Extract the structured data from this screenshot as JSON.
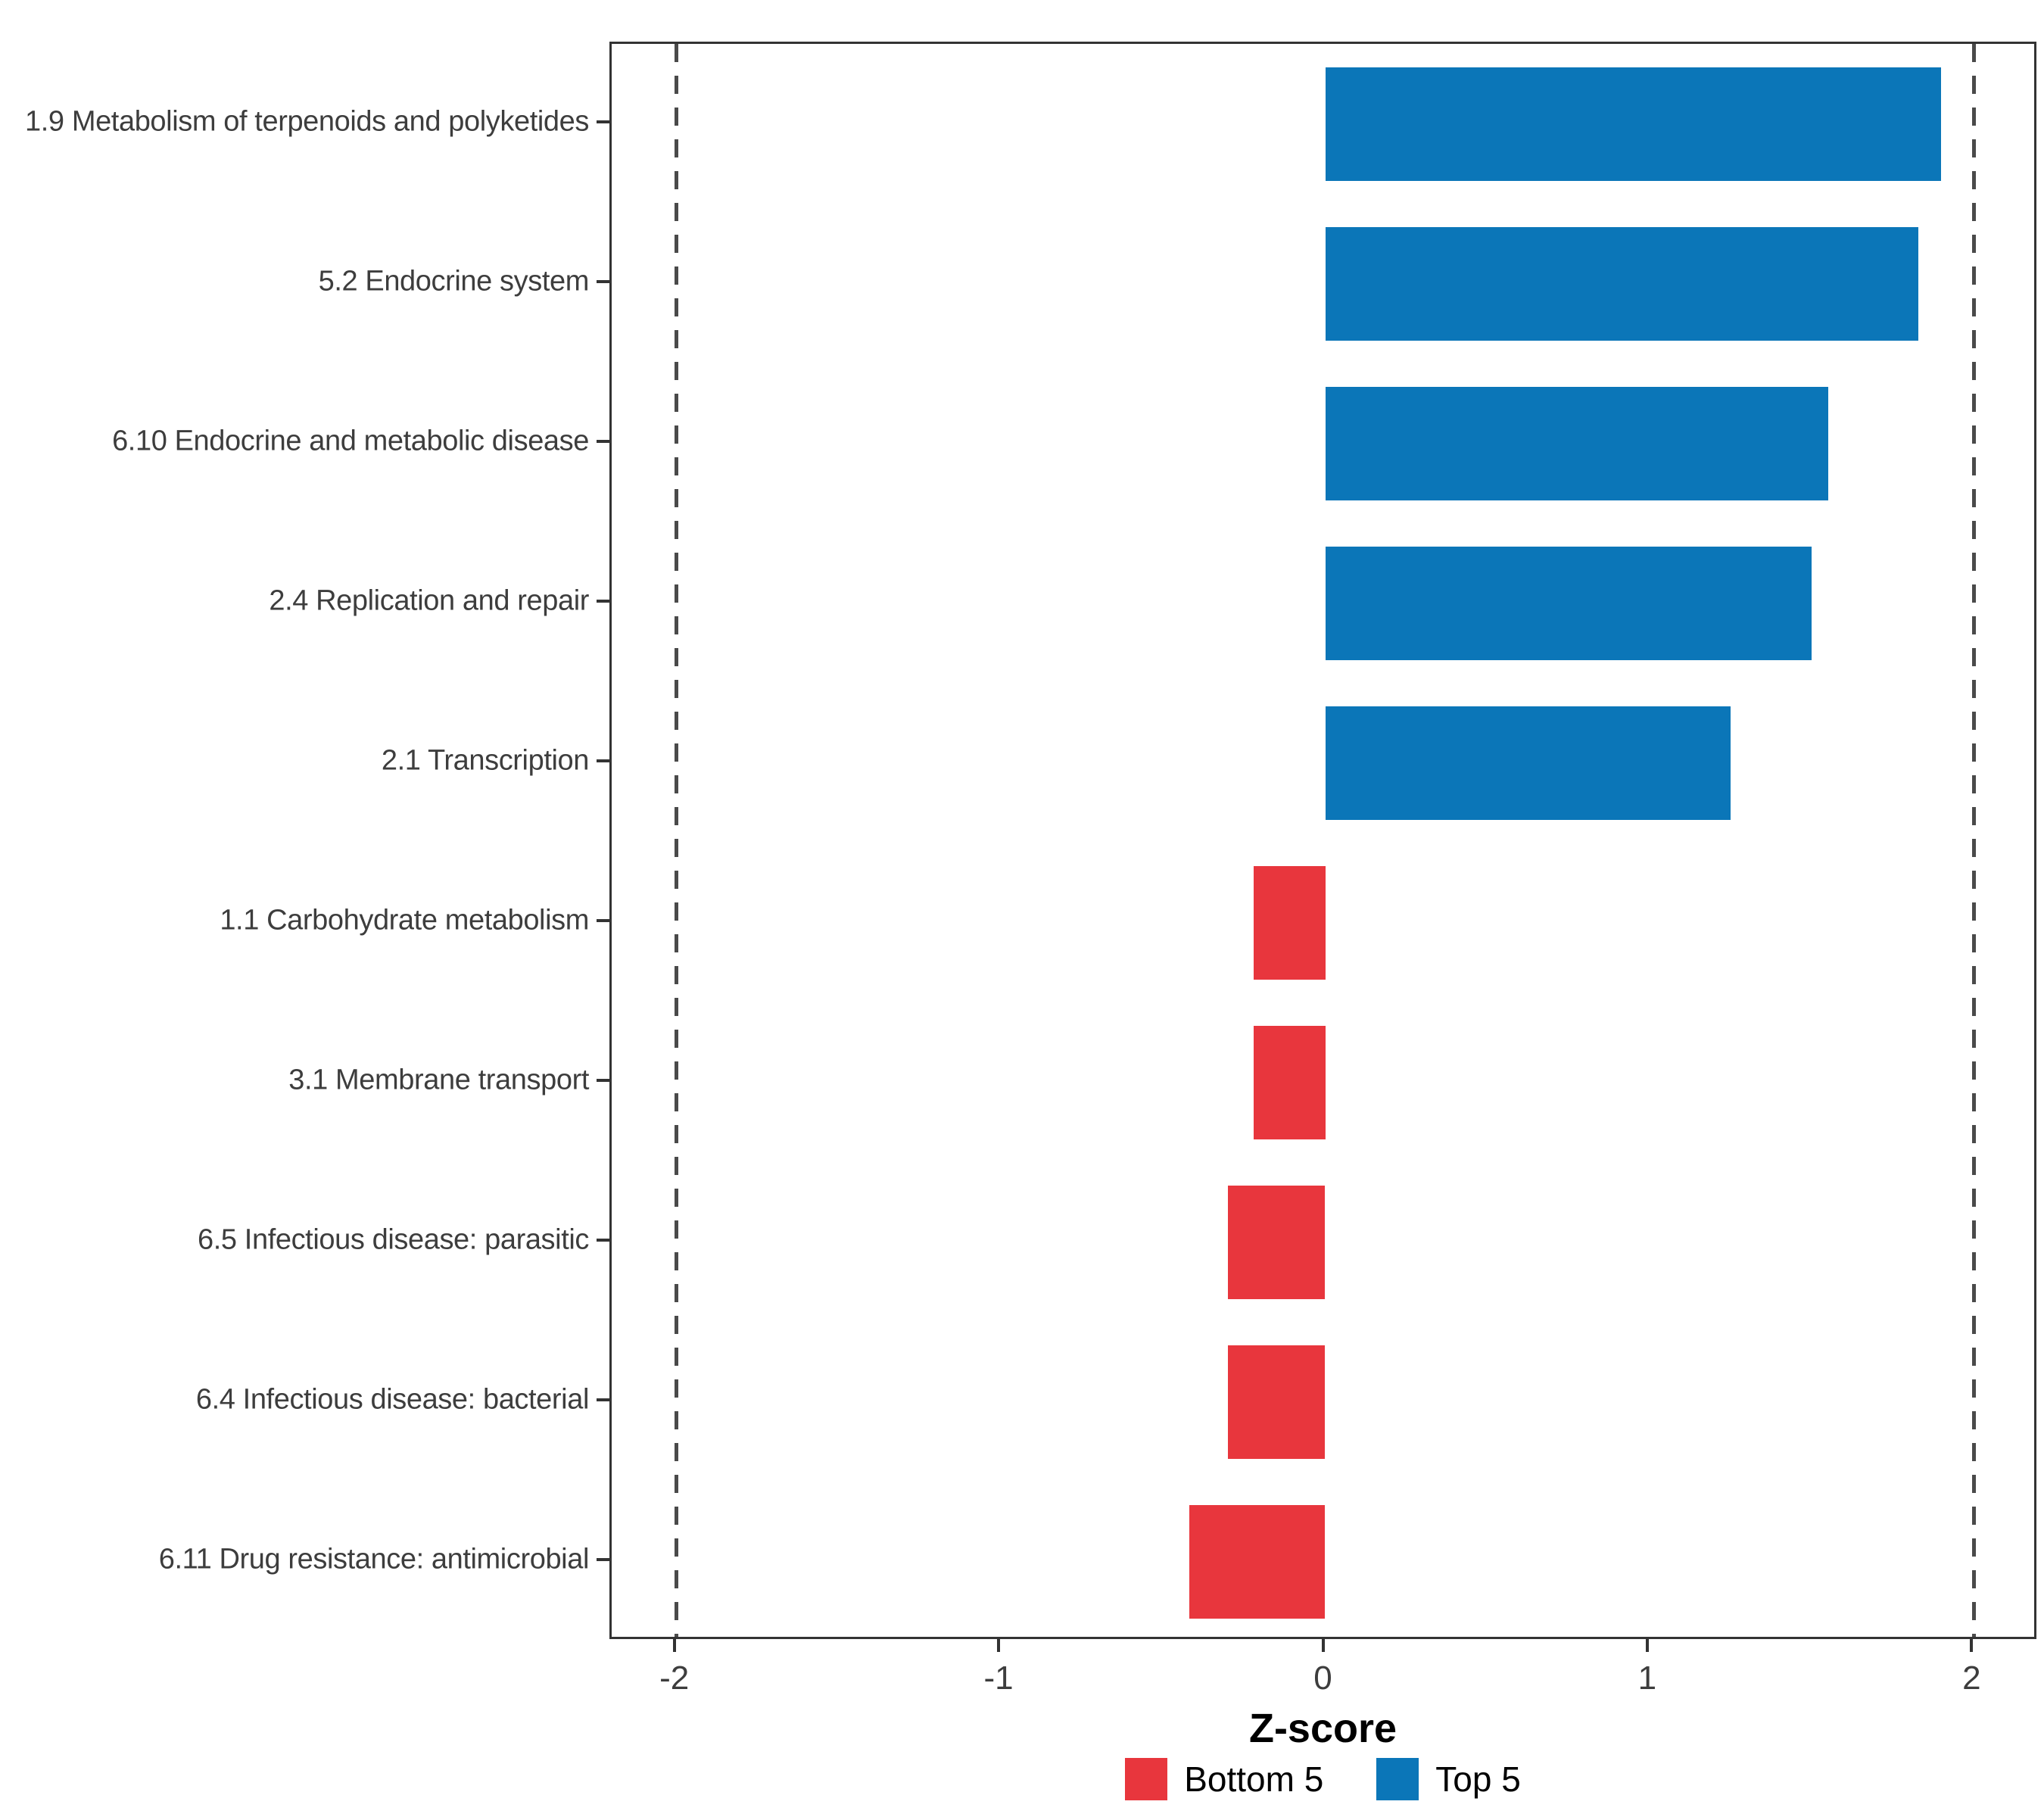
{
  "chart_data": {
    "type": "bar",
    "orientation": "horizontal",
    "title": "",
    "xlabel": "Z-score",
    "ylabel": "",
    "categories": [
      "1.9 Metabolism of terpenoids and polyketides",
      "5.2 Endocrine system",
      "6.10 Endocrine and metabolic disease",
      "2.4 Replication and repair",
      "2.1 Transcription",
      "1.1 Carbohydrate metabolism",
      "3.1 Membrane transport",
      "6.5 Infectious disease: parasitic",
      "6.4 Infectious disease: bacterial",
      "6.11 Drug resistance: antimicrobial"
    ],
    "values": [
      1.9,
      1.83,
      1.55,
      1.5,
      1.25,
      -0.22,
      -0.22,
      -0.3,
      -0.3,
      -0.42
    ],
    "groups": [
      "Top 5",
      "Top 5",
      "Top 5",
      "Top 5",
      "Top 5",
      "Bottom 5",
      "Bottom 5",
      "Bottom 5",
      "Bottom 5",
      "Bottom 5"
    ],
    "xlim": [
      -2.2,
      2.2
    ],
    "x_ticks": [
      -2,
      -1,
      0,
      1,
      2
    ],
    "reference_lines": [
      -2,
      2
    ],
    "grid": "off",
    "legend_position": "bottom",
    "legend": [
      {
        "label": "Bottom 5",
        "color": "#E8363D"
      },
      {
        "label": "Top 5",
        "color": "#0B76B8"
      }
    ],
    "bar_colors": {
      "Top 5": "#0B76B8",
      "Bottom 5": "#E8363D"
    },
    "panel_border_color": "#333333",
    "axis_text_color": "#3d3d3d"
  }
}
